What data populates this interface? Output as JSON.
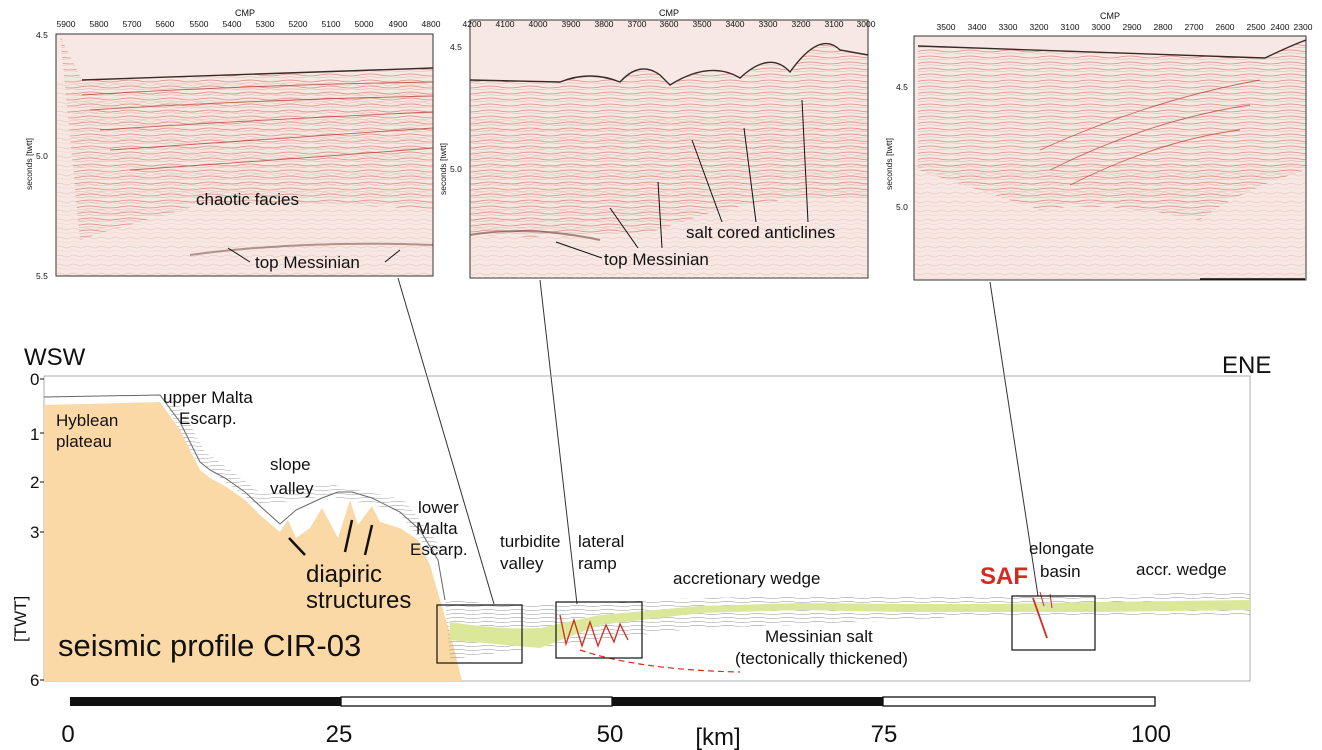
{
  "panels": [
    {
      "cmp_title": "CMP",
      "cmp_ticks": [
        "5900",
        "5800",
        "5700",
        "5600",
        "5500",
        "5400",
        "5300",
        "5200",
        "5100",
        "5000",
        "4900",
        "4800"
      ],
      "y_ticks": [
        "4.5",
        "5.0",
        "5.5"
      ],
      "y_label": "seconds [twtt]",
      "annotations": [
        "chaotic facies",
        "top Messinian"
      ]
    },
    {
      "cmp_title": "CMP",
      "cmp_ticks": [
        "4200",
        "4100",
        "4000",
        "3900",
        "3800",
        "3700",
        "3600",
        "3500",
        "3400",
        "3300",
        "3200",
        "3100",
        "3000"
      ],
      "y_ticks": [
        "4.5",
        "5.0"
      ],
      "y_label": "seconds [twtt]",
      "annotations": [
        "salt cored anticlines",
        "top Messinian"
      ]
    },
    {
      "cmp_title": "CMP",
      "cmp_ticks": [
        "3500",
        "3400",
        "3300",
        "3200",
        "3100",
        "3000",
        "2900",
        "2800",
        "2700",
        "2600",
        "2500",
        "2400",
        "2300"
      ],
      "y_ticks": [
        "4.5",
        "5.0"
      ],
      "y_label": "seconds [twtt]",
      "annotations": []
    }
  ],
  "profile": {
    "left_dir": "WSW",
    "right_dir": "ENE",
    "y_axis_label": "[TWT]",
    "y_ticks": [
      "0",
      "1",
      "2",
      "3",
      "6"
    ],
    "title": "seismic profile CIR-03",
    "labels": {
      "hyblean": [
        "Hyblean",
        "plateau"
      ],
      "upper_malta": [
        "upper Malta",
        "Escarp."
      ],
      "slope_valley": [
        "slope",
        "valley"
      ],
      "diapiric": [
        "diapiric",
        "structures"
      ],
      "lower_malta": [
        "lower",
        "Malta",
        "Escarp."
      ],
      "turbidite": [
        "turbidite",
        "valley"
      ],
      "lateral_ramp": [
        "lateral",
        "ramp"
      ],
      "accretionary": "accretionary wedge",
      "saf": "SAF",
      "elongate": [
        "elongate",
        "basin"
      ],
      "accr_wedge": "accr. wedge",
      "messinian": [
        "Messinian salt",
        "(tectonically thickened)"
      ]
    },
    "colors": {
      "plateau": "#fbd9a6",
      "salt": "#dbe89a",
      "fault": "#d42a1f",
      "seismic_lines": "#c0392b"
    }
  },
  "scale": {
    "ticks": [
      "0",
      "25",
      "50",
      "75",
      "100"
    ],
    "unit": "[km]"
  }
}
